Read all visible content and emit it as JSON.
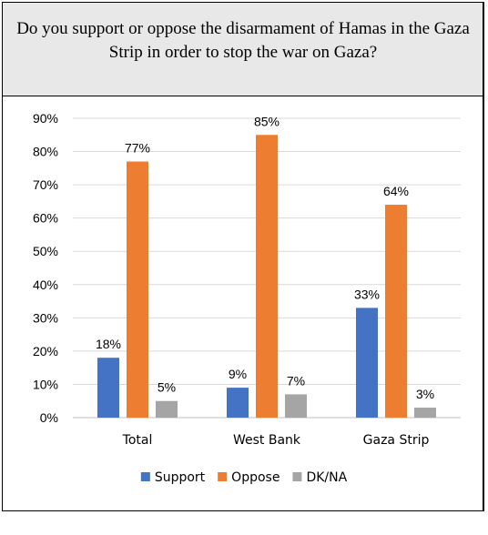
{
  "header": {
    "question": "Do you support or oppose the disarmament of Hamas in the Gaza Strip in order to stop the war on Gaza?"
  },
  "chart_data": {
    "type": "bar",
    "title": "",
    "xlabel": "",
    "ylabel": "",
    "categories": [
      "Total",
      "West Bank",
      "Gaza Strip"
    ],
    "series": [
      {
        "name": "Support",
        "values": [
          18,
          9,
          33
        ],
        "labels": [
          "18%",
          "9%",
          "33%"
        ],
        "color": "#4472c4"
      },
      {
        "name": "Oppose",
        "values": [
          77,
          85,
          64
        ],
        "labels": [
          "77%",
          "85%",
          "64%"
        ],
        "color": "#ed7d31"
      },
      {
        "name": "DK/NA",
        "values": [
          5,
          7,
          3
        ],
        "labels": [
          "5%",
          "7%",
          "3%"
        ],
        "color": "#a5a5a5"
      }
    ],
    "yticks": [
      "0%",
      "10%",
      "20%",
      "30%",
      "40%",
      "50%",
      "60%",
      "70%",
      "80%",
      "90%"
    ],
    "ylim": [
      0,
      90
    ],
    "grid": true,
    "legend": "bottom"
  }
}
